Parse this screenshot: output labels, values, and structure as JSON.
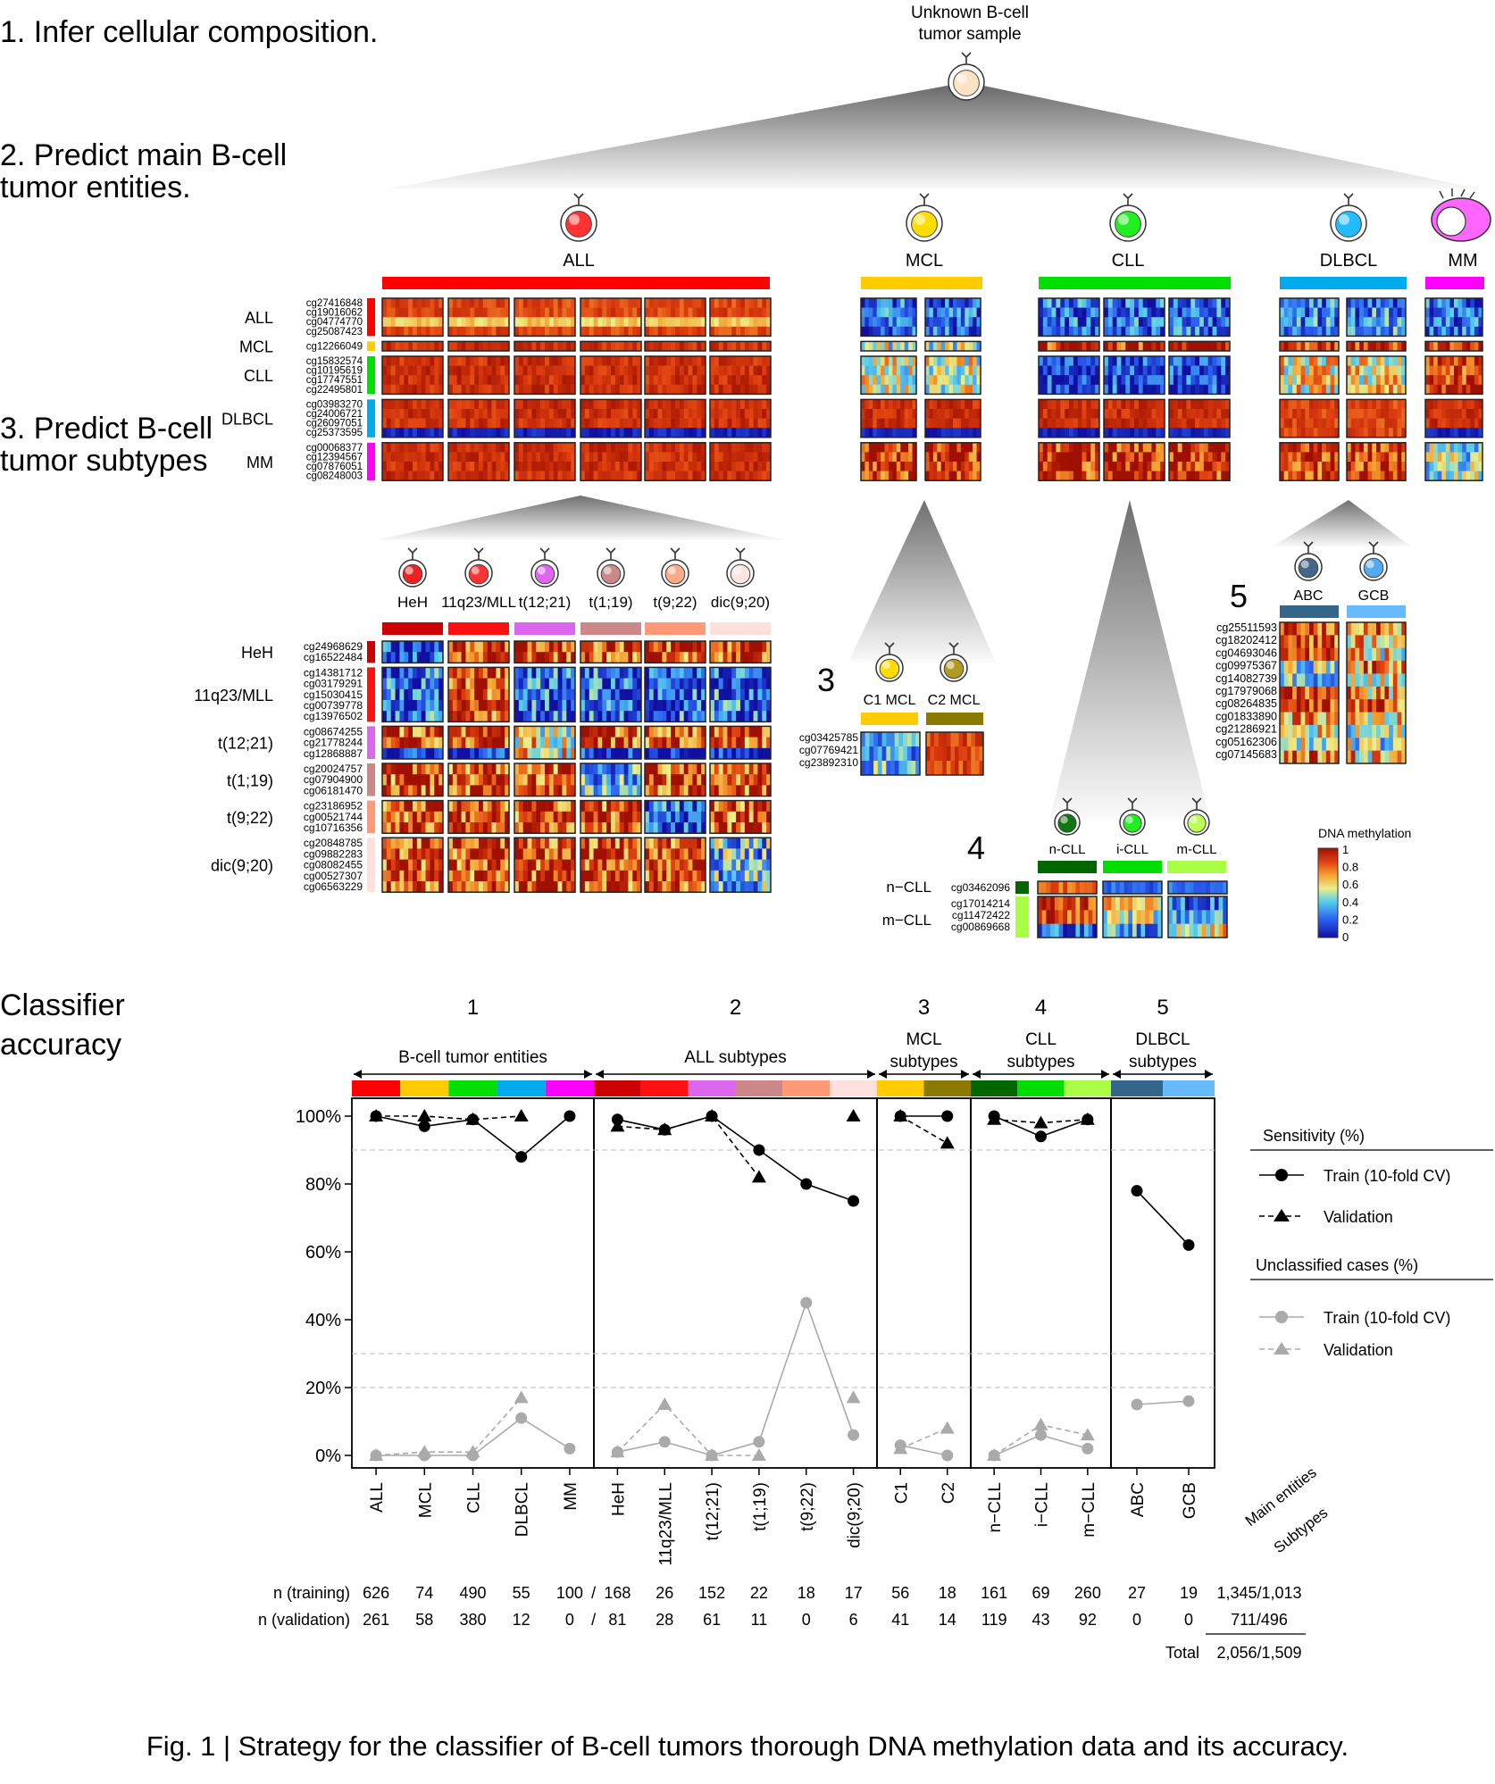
{
  "steps": {
    "s1": "1. Infer cellular composition.",
    "s2_l1": "2. Predict main B-cell",
    "s2_l2": "tumor entities.",
    "s3_l1": "3.  Predict B-cell",
    "s3_l2": "tumor subtypes",
    "acc_l1": "Classifier",
    "acc_l2": "accuracy"
  },
  "root": {
    "l1": "Unknown B-cell",
    "l2": "tumor sample"
  },
  "entities": [
    {
      "label": "ALL",
      "color": "#ff0000"
    },
    {
      "label": "MCL",
      "color": "#ffcc00"
    },
    {
      "label": "CLL",
      "color": "#00e000"
    },
    {
      "label": "DLBCL",
      "color": "#00aaee"
    },
    {
      "label": "MM",
      "color": "#ff00ff"
    }
  ],
  "main_groups": [
    {
      "label": "ALL",
      "color": "#ff0000",
      "probes": [
        "cg27416848",
        "cg19016062",
        "cg04774770",
        "cg25087423"
      ]
    },
    {
      "label": "MCL",
      "color": "#ffcc00",
      "probes": [
        "cg12266049"
      ]
    },
    {
      "label": "CLL",
      "color": "#00e000",
      "probes": [
        "cg15832574",
        "cg10195619",
        "cg17747551",
        "cg22495801"
      ]
    },
    {
      "label": "DLBCL",
      "color": "#00aaee",
      "probes": [
        "cg03983270",
        "cg24006721",
        "cg26097051",
        "cg25373595"
      ]
    },
    {
      "label": "MM",
      "color": "#ff00ff",
      "probes": [
        "cg00068377",
        "cg12394567",
        "cg07876051",
        "cg08248003"
      ]
    }
  ],
  "all_subtypes": [
    {
      "label": "HeH",
      "color": "#cc0000",
      "probes": [
        "cg24968629",
        "cg16522484"
      ]
    },
    {
      "label": "11q23/MLL",
      "color": "#ff1111",
      "probes": [
        "cg14381712",
        "cg03179291",
        "cg15030415",
        "cg00739778",
        "cg13976502"
      ]
    },
    {
      "label": "t(12;21)",
      "color": "#dd66ee",
      "probes": [
        "cg08674255",
        "cg21778244",
        "cg12868887"
      ]
    },
    {
      "label": "t(1;19)",
      "color": "#cc8888",
      "probes": [
        "cg20024757",
        "cg07904900",
        "cg06181470"
      ]
    },
    {
      "label": "t(9;22)",
      "color": "#ff9977",
      "probes": [
        "cg23186952",
        "cg00521744",
        "cg10716356"
      ]
    },
    {
      "label": "dic(9;20)",
      "color": "#ffe0dd",
      "probes": [
        "cg20848785",
        "cg09882283",
        "cg08082455",
        "cg00527307",
        "cg06563229"
      ]
    }
  ],
  "mcl_subtypes": {
    "number": "3",
    "labels": [
      "C1 MCL",
      "C2 MCL"
    ],
    "colors": [
      "#ffcc00",
      "#8b7a00"
    ],
    "probes": [
      "cg03425785",
      "cg07769421",
      "cg23892310"
    ]
  },
  "cll_subtypes": {
    "number": "4",
    "labels": [
      "n-CLL",
      "i-CLL",
      "m-CLL"
    ],
    "colors": [
      "#006600",
      "#00dd00",
      "#aaff44"
    ],
    "row_groups": [
      "n−CLL",
      "m−CLL"
    ],
    "probes_n": [
      "cg03462096"
    ],
    "probes_m": [
      "cg17014214",
      "cg11472422",
      "cg00869668"
    ]
  },
  "dlbcl_subtypes": {
    "number": "5",
    "labels": [
      "ABC",
      "GCB"
    ],
    "colors": [
      "#336688",
      "#66bbff"
    ],
    "probes": [
      "cg25511593",
      "cg18202412",
      "cg04693046",
      "cg09975367",
      "cg14082739",
      "cg17979068",
      "cg08264835",
      "cg01833890",
      "cg21286921",
      "cg05162306",
      "cg07145683"
    ]
  },
  "legend_methylation": {
    "title": "DNA methylation",
    "ticks": [
      "1",
      "0.8",
      "0.6",
      "0.4",
      "0.2",
      "0"
    ]
  },
  "chart_data": {
    "type": "line",
    "title": "",
    "ylabel": "",
    "ylim": [
      0,
      100
    ],
    "y_ticks": [
      "0%",
      "20%",
      "40%",
      "60%",
      "80%",
      "100%"
    ],
    "panels": [
      {
        "number": "1",
        "title": "B-cell tumor entities",
        "categories": [
          "ALL",
          "MCL",
          "CLL",
          "DLBCL",
          "MM"
        ]
      },
      {
        "number": "2",
        "title": "ALL subtypes",
        "categories": [
          "HeH",
          "11q23/MLL",
          "t(12;21)",
          "t(1;19)",
          "t(9;22)",
          "dic(9;20)"
        ]
      },
      {
        "number": "3",
        "title": "MCL subtypes",
        "categories": [
          "C1",
          "C2"
        ]
      },
      {
        "number": "4",
        "title": "CLL subtypes",
        "categories": [
          "n−CLL",
          "i−CLL",
          "m−CLL"
        ]
      },
      {
        "number": "5",
        "title": "DLBCL subtypes",
        "categories": [
          "ABC",
          "GCB"
        ]
      }
    ],
    "categories": [
      "ALL",
      "MCL",
      "CLL",
      "DLBCL",
      "MM",
      "HeH",
      "11q23/MLL",
      "t(12;21)",
      "t(1;19)",
      "t(9;22)",
      "dic(9;20)",
      "C1",
      "C2",
      "n−CLL",
      "i−CLL",
      "m−CLL",
      "ABC",
      "GCB"
    ],
    "category_colors": [
      "#ff0000",
      "#ffcc00",
      "#00e000",
      "#00aaee",
      "#ff00ff",
      "#cc0000",
      "#ff1111",
      "#dd66ee",
      "#cc8888",
      "#ff9977",
      "#ffe0dd",
      "#ffcc00",
      "#8b7a00",
      "#006600",
      "#00dd00",
      "#aaff44",
      "#336688",
      "#66bbff"
    ],
    "series": [
      {
        "name": "Train (10-fold CV)",
        "group": "Sensitivity (%)",
        "values": [
          100,
          97,
          99,
          88,
          100,
          99,
          96,
          100,
          90,
          80,
          75,
          100,
          100,
          100,
          94,
          99,
          78,
          62
        ]
      },
      {
        "name": "Validation",
        "group": "Sensitivity (%)",
        "values": [
          100,
          100,
          99,
          100,
          null,
          97,
          96,
          100,
          82,
          null,
          100,
          100,
          92,
          99,
          98,
          99,
          null,
          null
        ]
      },
      {
        "name": "Train (10-fold CV)",
        "group": "Unclassified cases (%)",
        "values": [
          0,
          0,
          0,
          11,
          2,
          1,
          4,
          0,
          4,
          45,
          6,
          3,
          0,
          0,
          6,
          2,
          15,
          16
        ]
      },
      {
        "name": "Validation",
        "group": "Unclassified cases (%)",
        "values": [
          0,
          1,
          1,
          17,
          null,
          1,
          15,
          0,
          0,
          null,
          17,
          2,
          8,
          0,
          9,
          6,
          null,
          null
        ]
      }
    ],
    "n_training": [
      "626",
      "74",
      "490",
      "55",
      "100",
      "168",
      "26",
      "152",
      "22",
      "18",
      "17",
      "56",
      "18",
      "161",
      "69",
      "260",
      "27",
      "19"
    ],
    "n_validation": [
      "261",
      "58",
      "380",
      "12",
      "0",
      "81",
      "28",
      "61",
      "11",
      "0",
      "6",
      "41",
      "14",
      "119",
      "43",
      "92",
      "0",
      "0"
    ],
    "row_labels": {
      "training": "n (training)",
      "validation": "n (validation)"
    },
    "slash": "/",
    "totals": {
      "header1": "Main entities",
      "header2": "Subtypes",
      "training": "1,345/1,013",
      "validation": "711/496",
      "total_label": "Total",
      "total": "2,056/1,509"
    },
    "legend": {
      "sens_title": "Sensitivity (%)",
      "unc_title": "Unclassified cases (%)",
      "train": "Train (10-fold CV)",
      "validation": "Validation"
    }
  },
  "caption": "Fig. 1 | Strategy for the classifier of B-cell tumors thorough DNA methylation data and its accuracy."
}
